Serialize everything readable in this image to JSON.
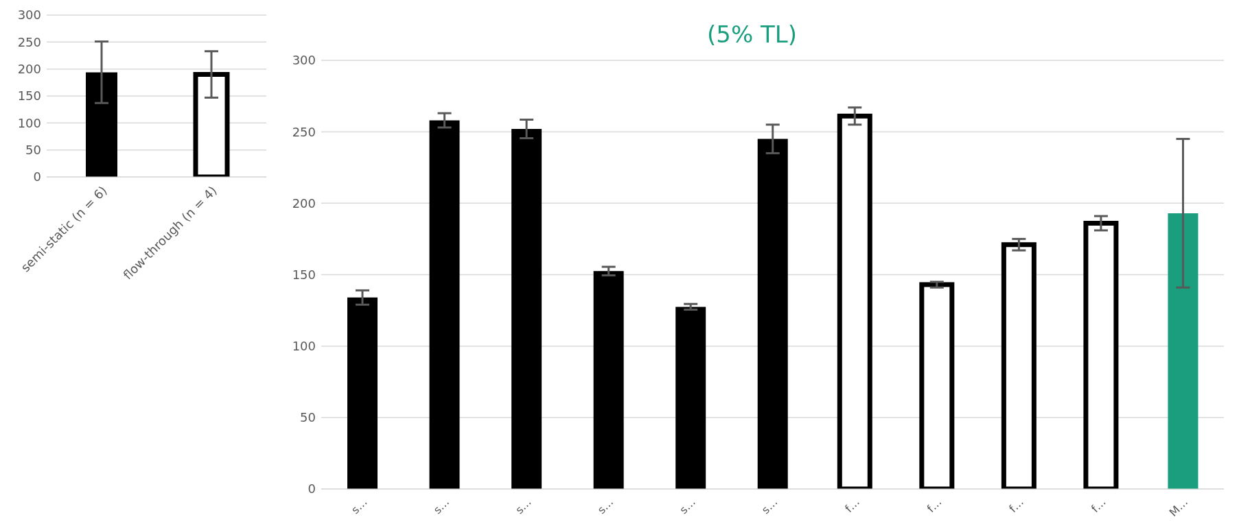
{
  "chart_data": [
    {
      "type": "bar",
      "categories": [
        "semi-static (n = 6)",
        "flow-through (n = 4)"
      ],
      "values": [
        194,
        190
      ],
      "errors": [
        57,
        43
      ],
      "colors": [
        "#000000",
        "#ffffff"
      ],
      "ylim": [
        0,
        300
      ],
      "yticks": [
        0,
        50,
        100,
        150,
        200,
        250,
        300
      ],
      "grid": "y"
    },
    {
      "type": "bar",
      "title": "(5% TL)",
      "categories": [
        "s…",
        "s…",
        "s…",
        "s…",
        "s…",
        "s…",
        "f…",
        "f…",
        "f…",
        "f…",
        "M…"
      ],
      "values": [
        134,
        258,
        252,
        152.5,
        127.5,
        245,
        261,
        143,
        171,
        186,
        193
      ],
      "errors": [
        5,
        5,
        6.5,
        3,
        2,
        10,
        6,
        2,
        4,
        5,
        52
      ],
      "colors": [
        "#000000",
        "#000000",
        "#000000",
        "#000000",
        "#000000",
        "#000000",
        "#ffffff",
        "#ffffff",
        "#ffffff",
        "#ffffff",
        "#1a9e7e"
      ],
      "ylim": [
        0,
        300
      ],
      "yticks": [
        0,
        50,
        100,
        150,
        200,
        250,
        300
      ],
      "grid": "y"
    }
  ]
}
